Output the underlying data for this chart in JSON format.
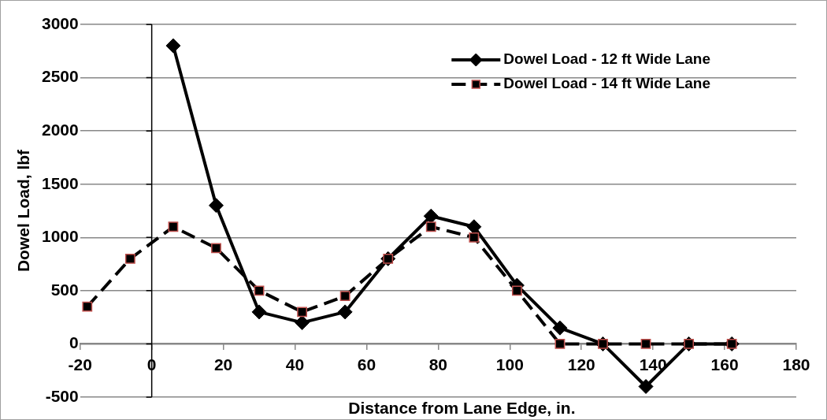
{
  "chart_data": {
    "type": "line",
    "xlabel": "Distance from Lane Edge, in.",
    "ylabel": "Dowel Load, lbf",
    "xlim": [
      -20,
      180
    ],
    "xticks": [
      -20,
      0,
      20,
      40,
      60,
      80,
      100,
      120,
      140,
      160,
      180
    ],
    "ylim": [
      -500,
      3000
    ],
    "yticks": [
      -500,
      0,
      500,
      1000,
      1500,
      2000,
      2500,
      3000
    ],
    "grid": "y",
    "legend": "top right",
    "series": [
      {
        "name": "Dowel Load - 12 ft Wide Lane",
        "color": "#000000",
        "marker": "diamond",
        "line_style": "solid",
        "x": [
          6,
          18,
          30,
          42,
          54,
          66,
          78,
          90,
          102,
          114,
          126,
          138,
          150,
          162
        ],
        "values": [
          2800,
          1300,
          300,
          200,
          300,
          800,
          1200,
          1100,
          550,
          150,
          0,
          -400,
          0,
          0
        ]
      },
      {
        "name": "Dowel Load - 14 ft Wide Lane",
        "color": "#000000",
        "marker": "square",
        "line_style": "dashed",
        "x": [
          -18,
          -6,
          6,
          18,
          30,
          42,
          54,
          66,
          78,
          90,
          102,
          114,
          126,
          138,
          150,
          162
        ],
        "values": [
          350,
          800,
          1100,
          900,
          500,
          300,
          450,
          800,
          1100,
          1000,
          500,
          0,
          0,
          0,
          0,
          0
        ]
      }
    ]
  }
}
